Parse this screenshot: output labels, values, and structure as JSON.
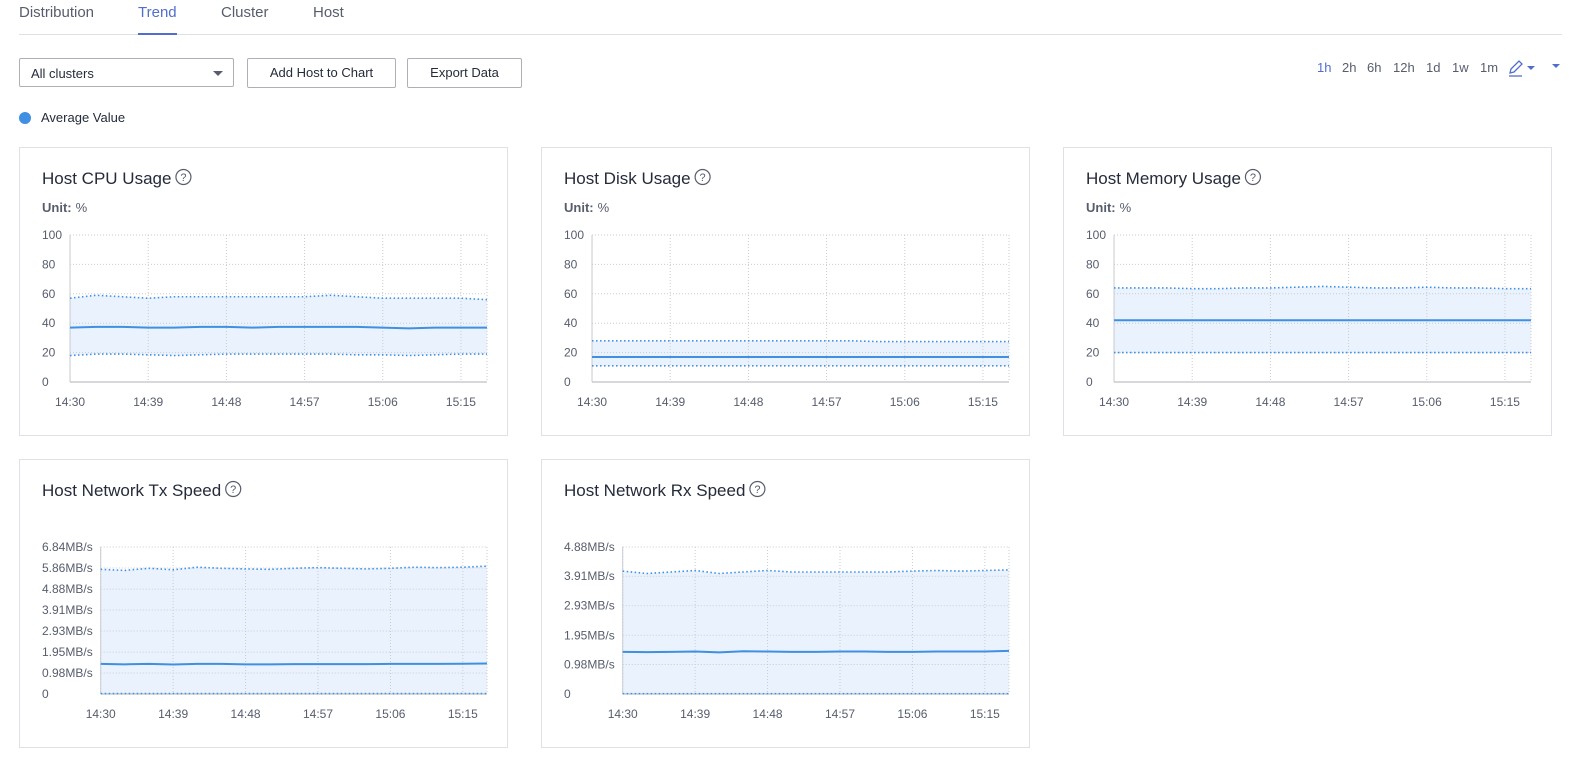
{
  "tabs": [
    {
      "label": "Distribution",
      "active": false
    },
    {
      "label": "Trend",
      "active": true
    },
    {
      "label": "Cluster",
      "active": false
    },
    {
      "label": "Host",
      "active": false
    }
  ],
  "cluster_select": "All clusters",
  "buttons": [
    "Add Host to Chart",
    "Export Data"
  ],
  "time_ranges": [
    {
      "label": "1h",
      "active": true
    },
    {
      "label": "2h",
      "active": false
    },
    {
      "label": "6h",
      "active": false
    },
    {
      "label": "12h",
      "active": false
    },
    {
      "label": "1d",
      "active": false
    },
    {
      "label": "1w",
      "active": false
    },
    {
      "label": "1m",
      "active": false
    }
  ],
  "legend": {
    "name": "Average Value",
    "color": "#3f8fe3"
  },
  "chart_data": [
    {
      "type": "line",
      "title": "Host CPU Usage",
      "unit_label": "Unit:",
      "unit": "%",
      "categories": [
        "14:30",
        null,
        null,
        "14:39",
        null,
        null,
        "14:48",
        null,
        null,
        "14:57",
        null,
        null,
        "15:06",
        null,
        null,
        "15:15",
        null
      ],
      "ylim": [
        0,
        100
      ],
      "yticks": [
        0,
        20,
        40,
        60,
        80,
        100
      ],
      "grid": true,
      "series": [
        {
          "color": "#3f8fe3",
          "style": "dotted",
          "values": [
            57,
            59,
            58,
            57,
            58,
            58,
            58,
            58,
            58,
            58,
            59,
            58,
            57,
            57,
            57,
            57,
            56
          ]
        },
        {
          "color": "#3f8fe3",
          "style": "solid",
          "values": [
            37,
            37.5,
            37.5,
            37,
            37,
            37.5,
            37.5,
            37,
            37.5,
            37.5,
            37.5,
            37.5,
            37,
            36.5,
            37,
            37,
            37
          ]
        },
        {
          "color": "#3f8fe3",
          "style": "dotted",
          "values": [
            18,
            19,
            19,
            18.5,
            18,
            18.5,
            19,
            19,
            19,
            19,
            19,
            18.5,
            18.5,
            18,
            18.5,
            19,
            19
          ]
        }
      ]
    },
    {
      "type": "line",
      "title": "Host Disk Usage",
      "unit_label": "Unit:",
      "unit": "%",
      "categories": [
        "14:30",
        null,
        null,
        "14:39",
        null,
        null,
        "14:48",
        null,
        null,
        "14:57",
        null,
        null,
        "15:06",
        null,
        null,
        "15:15",
        null
      ],
      "ylim": [
        0,
        100
      ],
      "yticks": [
        0,
        20,
        40,
        60,
        80,
        100
      ],
      "grid": true,
      "series": [
        {
          "color": "#3f8fe3",
          "style": "dotted",
          "values": [
            28,
            28,
            28,
            28,
            28,
            28,
            28,
            28,
            28,
            28,
            28,
            27.5,
            27.5,
            27.5,
            27.5,
            27.5,
            27.5
          ]
        },
        {
          "color": "#3f8fe3",
          "style": "solid",
          "values": [
            17,
            17,
            17,
            17,
            17,
            17,
            17,
            17,
            17,
            17,
            17,
            17,
            17,
            17,
            17,
            17,
            17
          ]
        },
        {
          "color": "#3f8fe3",
          "style": "dotted",
          "values": [
            11,
            11,
            11,
            11,
            11,
            11,
            11,
            11,
            11,
            11,
            11,
            11,
            11,
            11,
            11,
            11,
            11
          ]
        }
      ]
    },
    {
      "type": "line",
      "title": "Host Memory Usage",
      "unit_label": "Unit:",
      "unit": "%",
      "categories": [
        "14:30",
        null,
        null,
        "14:39",
        null,
        null,
        "14:48",
        null,
        null,
        "14:57",
        null,
        null,
        "15:06",
        null,
        null,
        "15:15",
        null
      ],
      "ylim": [
        0,
        100
      ],
      "yticks": [
        0,
        20,
        40,
        60,
        80,
        100
      ],
      "grid": true,
      "series": [
        {
          "color": "#3f8fe3",
          "style": "dotted",
          "values": [
            64,
            64,
            64,
            63.5,
            63.5,
            64,
            64,
            64.5,
            65,
            64.5,
            64,
            64,
            64.5,
            64,
            64,
            63.5,
            63.5
          ]
        },
        {
          "color": "#3f8fe3",
          "style": "solid",
          "values": [
            42,
            42,
            42,
            42,
            42,
            42,
            42,
            42,
            42,
            42,
            42,
            42,
            42,
            42,
            42,
            42,
            42
          ]
        },
        {
          "color": "#3f8fe3",
          "style": "dotted",
          "values": [
            20,
            20,
            20,
            20,
            20,
            20,
            20,
            20,
            20,
            20,
            20,
            20,
            20,
            20,
            20,
            20,
            20
          ]
        }
      ]
    },
    {
      "type": "line",
      "title": "Host Network Tx Speed",
      "categories": [
        "14:30",
        null,
        null,
        "14:39",
        null,
        null,
        "14:48",
        null,
        null,
        "14:57",
        null,
        null,
        "15:06",
        null,
        null,
        "15:15",
        null
      ],
      "ylim": [
        0,
        6.84
      ],
      "yticks": [
        0,
        {
          "value": 0.98,
          "label": "0.98MB/s"
        },
        {
          "value": 1.95,
          "label": "1.95MB/s"
        },
        {
          "value": 2.93,
          "label": "2.93MB/s"
        },
        {
          "value": 3.91,
          "label": "3.91MB/s"
        },
        {
          "value": 4.88,
          "label": "4.88MB/s"
        },
        {
          "value": 5.86,
          "label": "5.86MB/s"
        },
        {
          "value": 6.84,
          "label": "6.84MB/s"
        }
      ],
      "grid": true,
      "series": [
        {
          "color": "#3f8fe3",
          "style": "dotted",
          "values": [
            5.8,
            5.75,
            5.85,
            5.78,
            5.9,
            5.85,
            5.82,
            5.8,
            5.85,
            5.88,
            5.85,
            5.82,
            5.85,
            5.9,
            5.88,
            5.9,
            5.95
          ]
        },
        {
          "color": "#3f8fe3",
          "style": "solid",
          "values": [
            1.4,
            1.38,
            1.4,
            1.37,
            1.4,
            1.4,
            1.38,
            1.38,
            1.39,
            1.39,
            1.39,
            1.39,
            1.4,
            1.4,
            1.4,
            1.41,
            1.42
          ]
        },
        {
          "color": "#3f8fe3",
          "style": "dotted",
          "values": [
            0.02,
            0.02,
            0.02,
            0.02,
            0.02,
            0.02,
            0.02,
            0.02,
            0.02,
            0.02,
            0.02,
            0.02,
            0.02,
            0.02,
            0.02,
            0.02,
            0.02
          ]
        }
      ]
    },
    {
      "type": "line",
      "title": "Host Network Rx Speed",
      "categories": [
        "14:30",
        null,
        null,
        "14:39",
        null,
        null,
        "14:48",
        null,
        null,
        "14:57",
        null,
        null,
        "15:06",
        null,
        null,
        "15:15",
        null
      ],
      "ylim": [
        0,
        4.88
      ],
      "yticks": [
        0,
        {
          "value": 0.98,
          "label": "0.98MB/s"
        },
        {
          "value": 1.95,
          "label": "1.95MB/s"
        },
        {
          "value": 2.93,
          "label": "2.93MB/s"
        },
        {
          "value": 3.91,
          "label": "3.91MB/s"
        },
        {
          "value": 4.88,
          "label": "4.88MB/s"
        }
      ],
      "grid": true,
      "series": [
        {
          "color": "#3f8fe3",
          "style": "dotted",
          "values": [
            4.08,
            4.0,
            4.05,
            4.1,
            4.0,
            4.05,
            4.1,
            4.05,
            4.05,
            4.05,
            4.05,
            4.05,
            4.08,
            4.1,
            4.08,
            4.1,
            4.12
          ]
        },
        {
          "color": "#3f8fe3",
          "style": "solid",
          "values": [
            1.4,
            1.39,
            1.4,
            1.41,
            1.38,
            1.42,
            1.41,
            1.4,
            1.4,
            1.41,
            1.41,
            1.4,
            1.4,
            1.41,
            1.41,
            1.41,
            1.43
          ]
        },
        {
          "color": "#3f8fe3",
          "style": "dotted",
          "values": [
            0.01,
            0.01,
            0.01,
            0.01,
            0.01,
            0.01,
            0.01,
            0.01,
            0.01,
            0.01,
            0.01,
            0.01,
            0.01,
            0.01,
            0.01,
            0.01,
            0.01
          ]
        }
      ]
    }
  ]
}
